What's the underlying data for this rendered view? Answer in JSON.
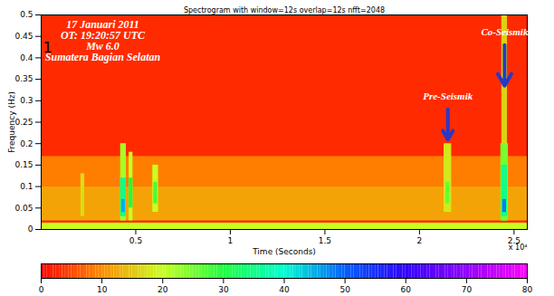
{
  "chart_data": {
    "type": "heatmap",
    "title": "Spectrogram with window=12s overlap=12s nfft=2048",
    "x_label": "Time (Seconds)",
    "y_label": "Frequency (Hz)",
    "x_exponent_label": "x 10⁴",
    "xlim": [
      0,
      2.57
    ],
    "xticks": [
      0.5,
      1,
      1.5,
      2,
      2.5
    ],
    "ylim": [
      0,
      0.5
    ],
    "yticks": [
      0,
      0.05,
      0.1,
      0.15,
      0.2,
      0.25,
      0.3,
      0.35,
      0.4,
      0.45,
      0.5
    ],
    "cells": [
      {
        "x1": 0,
        "x2": 2.57,
        "y1": 0,
        "y2": 0.5,
        "value": 3
      },
      {
        "x1": 0,
        "x2": 2.57,
        "y1": 0.1,
        "y2": 0.17,
        "value": 9
      },
      {
        "x1": 0,
        "x2": 2.57,
        "y1": 0.02,
        "y2": 0.1,
        "value": 12
      },
      {
        "x1": 0,
        "x2": 2.57,
        "y1": 0,
        "y2": 0.015,
        "value": 20
      },
      {
        "x1": 0.21,
        "x2": 0.23,
        "y1": 0.03,
        "y2": 0.13,
        "value": 17
      },
      {
        "x1": 0.42,
        "x2": 0.45,
        "y1": 0.02,
        "y2": 0.2,
        "value": 22
      },
      {
        "x1": 0.42,
        "x2": 0.45,
        "y1": 0.03,
        "y2": 0.12,
        "value": 35
      },
      {
        "x1": 0.425,
        "x2": 0.445,
        "y1": 0.04,
        "y2": 0.07,
        "value": 45
      },
      {
        "x1": 0.465,
        "x2": 0.485,
        "y1": 0.02,
        "y2": 0.18,
        "value": 20
      },
      {
        "x1": 0.465,
        "x2": 0.485,
        "y1": 0.05,
        "y2": 0.12,
        "value": 30
      },
      {
        "x1": 0.59,
        "x2": 0.62,
        "y1": 0.04,
        "y2": 0.15,
        "value": 20
      },
      {
        "x1": 0.595,
        "x2": 0.615,
        "y1": 0.06,
        "y2": 0.11,
        "value": 28
      },
      {
        "x1": 2.13,
        "x2": 2.17,
        "y1": 0.04,
        "y2": 0.2,
        "value": 18
      },
      {
        "x1": 2.14,
        "x2": 2.16,
        "y1": 0.06,
        "y2": 0.11,
        "value": 26
      },
      {
        "x1": 2.435,
        "x2": 2.465,
        "y1": 0.02,
        "y2": 0.5,
        "value": 16
      },
      {
        "x1": 2.43,
        "x2": 2.47,
        "y1": 0.02,
        "y2": 0.2,
        "value": 25
      },
      {
        "x1": 2.435,
        "x2": 2.465,
        "y1": 0.03,
        "y2": 0.15,
        "value": 35
      },
      {
        "x1": 2.44,
        "x2": 2.46,
        "y1": 0.04,
        "y2": 0.07,
        "value": 48
      }
    ],
    "colorbar": {
      "range": [
        0,
        80
      ],
      "ticks": [
        0,
        10,
        20,
        30,
        40,
        50,
        60,
        70,
        80
      ]
    },
    "info_text": [
      "17 Januari 2011",
      "OT: 19:20:57 UTC",
      "Mw 6.0",
      "Sumatera Bagian Selatan"
    ],
    "panel_label": "1",
    "annotations": [
      {
        "text": "Pre-Seismik",
        "x": 2.15
      },
      {
        "text": "Co-Seismik",
        "x": 2.45
      }
    ]
  }
}
